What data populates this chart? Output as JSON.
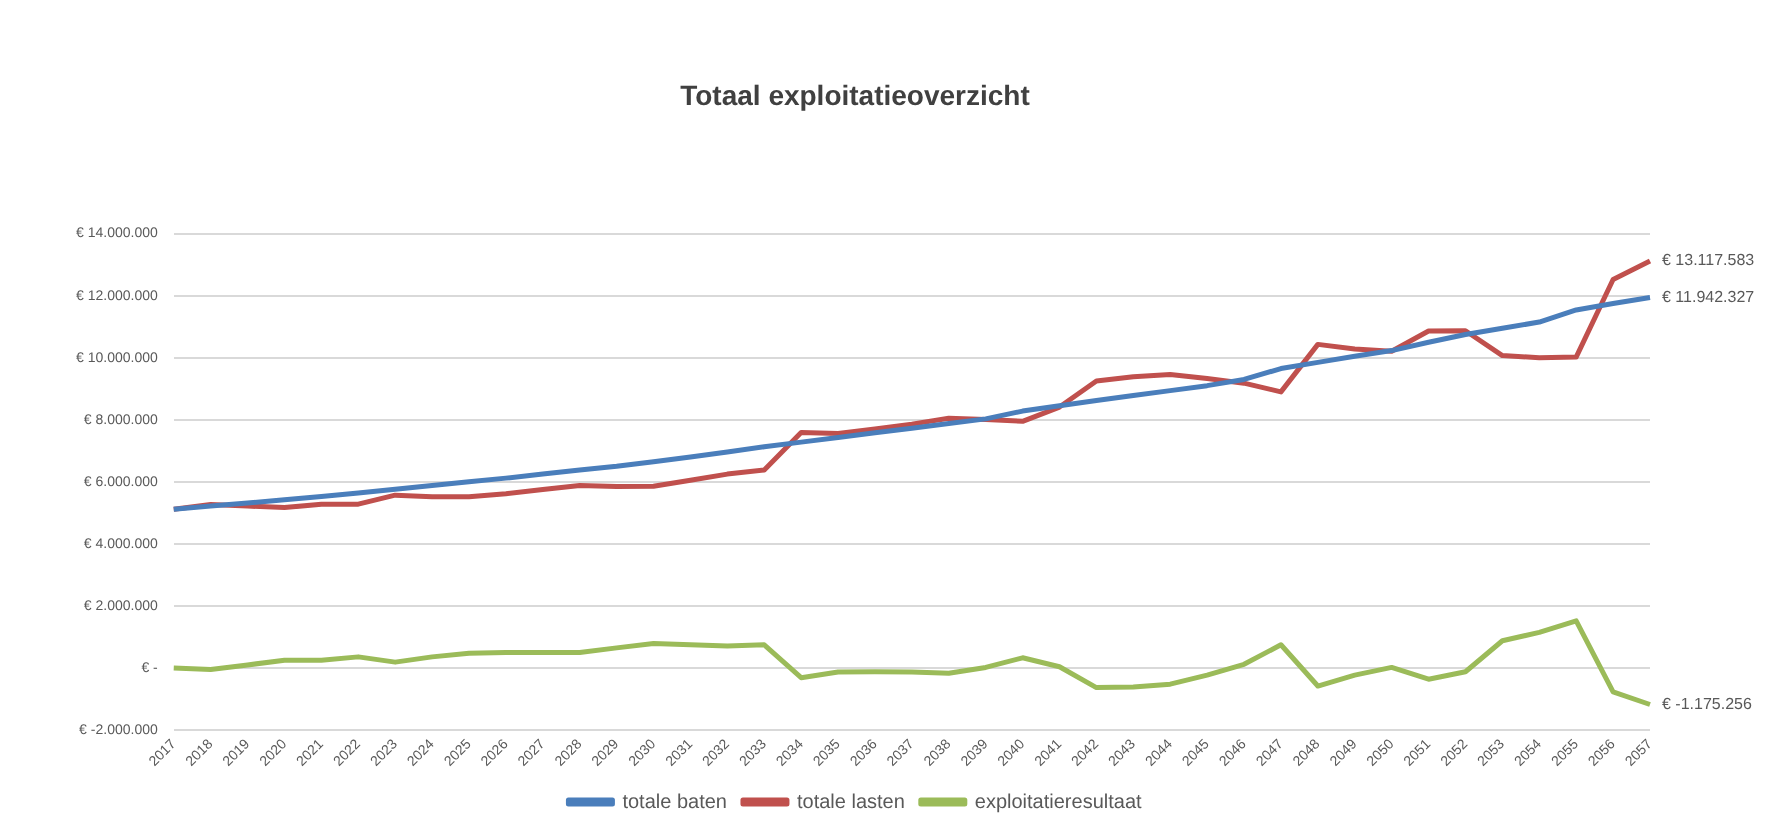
{
  "chart_data": {
    "type": "line",
    "title": "Totaal exploitatieoverzicht",
    "categories": [
      "2017",
      "2018",
      "2019",
      "2020",
      "2021",
      "2022",
      "2023",
      "2024",
      "2025",
      "2026",
      "2027",
      "2028",
      "2029",
      "2030",
      "2031",
      "2032",
      "2033",
      "2034",
      "2035",
      "2036",
      "2037",
      "2038",
      "2039",
      "2040",
      "2041",
      "2042",
      "2043",
      "2044",
      "2045",
      "2046",
      "2047",
      "2048",
      "2049",
      "2050",
      "2051",
      "2052",
      "2053",
      "2054",
      "2055",
      "2056",
      "2057"
    ],
    "series": [
      {
        "name": "totale baten",
        "color": "#4a7ebb",
        "values": [
          5120000,
          5220000,
          5320000,
          5420000,
          5530000,
          5640000,
          5760000,
          5880000,
          6000000,
          6120000,
          6250000,
          6380000,
          6500000,
          6650000,
          6800000,
          6960000,
          7130000,
          7280000,
          7430000,
          7580000,
          7730000,
          7880000,
          8030000,
          8280000,
          8450000,
          8620000,
          8780000,
          8940000,
          9100000,
          9300000,
          9650000,
          9850000,
          10050000,
          10230000,
          10500000,
          10750000,
          10950000,
          11150000,
          11540000,
          11750000,
          11942327
        ],
        "value_labels": [
          null,
          null,
          null,
          null,
          null,
          null,
          null,
          null,
          null,
          null,
          null,
          null,
          null,
          null,
          null,
          null,
          null,
          null,
          null,
          null,
          null,
          null,
          null,
          null,
          null,
          null,
          null,
          null,
          null,
          null,
          null,
          null,
          null,
          null,
          null,
          null,
          null,
          null,
          null,
          null,
          "€ 11.942.327"
        ]
      },
      {
        "name": "totale lasten",
        "color": "#c0504d",
        "values": [
          5120000,
          5270000,
          5220000,
          5170000,
          5280000,
          5280000,
          5570000,
          5520000,
          5520000,
          5620000,
          5750000,
          5880000,
          5850000,
          5860000,
          6050000,
          6250000,
          6380000,
          7590000,
          7560000,
          7700000,
          7860000,
          8050000,
          8010000,
          7950000,
          8410000,
          9250000,
          9390000,
          9460000,
          9330000,
          9180000,
          8900000,
          10430000,
          10280000,
          10210000,
          10860000,
          10870000,
          10070000,
          10000000,
          10020000,
          12520000,
          13117583
        ],
        "value_labels": [
          null,
          null,
          null,
          null,
          null,
          null,
          null,
          null,
          null,
          null,
          null,
          null,
          null,
          null,
          null,
          null,
          null,
          null,
          null,
          null,
          null,
          null,
          null,
          null,
          null,
          null,
          null,
          null,
          null,
          null,
          null,
          null,
          null,
          null,
          null,
          null,
          null,
          null,
          null,
          null,
          "€ 13.117.583"
        ]
      },
      {
        "name": "exploitatieresultaat",
        "color": "#9bbb59",
        "values": [
          0,
          -50000,
          100000,
          250000,
          250000,
          360000,
          190000,
          360000,
          480000,
          500000,
          500000,
          500000,
          650000,
          790000,
          750000,
          710000,
          750000,
          -310000,
          -130000,
          -120000,
          -130000,
          -170000,
          20000,
          330000,
          40000,
          -630000,
          -610000,
          -520000,
          -230000,
          120000,
          750000,
          -580000,
          -230000,
          20000,
          -360000,
          -120000,
          880000,
          1150000,
          1520000,
          -770000,
          -1175256
        ],
        "value_labels": [
          null,
          null,
          null,
          null,
          null,
          null,
          null,
          null,
          null,
          null,
          null,
          null,
          null,
          null,
          null,
          null,
          null,
          null,
          null,
          null,
          null,
          null,
          null,
          null,
          null,
          null,
          null,
          null,
          null,
          null,
          null,
          null,
          null,
          null,
          null,
          null,
          null,
          null,
          null,
          null,
          "€ -1.175.256"
        ]
      }
    ],
    "ylim": [
      -2000000,
      14000000
    ],
    "yticks": [
      {
        "value": -2000000,
        "label": "€ -2.000.000"
      },
      {
        "value": 0,
        "label": "€ -"
      },
      {
        "value": 2000000,
        "label": "€ 2.000.000"
      },
      {
        "value": 4000000,
        "label": "€ 4.000.000"
      },
      {
        "value": 6000000,
        "label": "€ 6.000.000"
      },
      {
        "value": 8000000,
        "label": "€ 8.000.000"
      },
      {
        "value": 10000000,
        "label": "€ 10.000.000"
      },
      {
        "value": 12000000,
        "label": "€ 12.000.000"
      },
      {
        "value": 14000000,
        "label": "€ 14.000.000"
      }
    ],
    "grid": "y",
    "legend": "bottom",
    "marker": "none",
    "line_style": "solid"
  }
}
